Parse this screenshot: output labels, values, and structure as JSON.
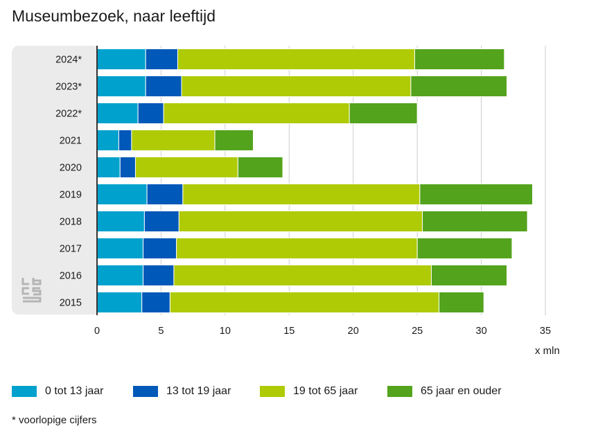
{
  "title": "Museumbezoek, naar leeftijd",
  "unit_label": "x mln",
  "footnote": "* voorlopige cijfers",
  "chart_data": {
    "type": "bar",
    "orientation": "horizontal",
    "stacked": true,
    "title": "Museumbezoek, naar leeftijd",
    "xlabel": "x mln",
    "ylabel": "",
    "xlim": [
      0,
      35
    ],
    "xticks": [
      0,
      5,
      10,
      15,
      20,
      25,
      30,
      35
    ],
    "grid": true,
    "legend_position": "bottom",
    "categories": [
      "2024*",
      "2023*",
      "2022*",
      "2021",
      "2020",
      "2019",
      "2018",
      "2017",
      "2016",
      "2015"
    ],
    "series": [
      {
        "name": "0 tot 13 jaar",
        "color": "#00a1cd",
        "values": [
          3.8,
          3.8,
          3.2,
          1.7,
          1.8,
          3.9,
          3.7,
          3.6,
          3.6,
          3.5
        ]
      },
      {
        "name": "13 tot 19 jaar",
        "color": "#0058b8",
        "values": [
          2.5,
          2.8,
          2.0,
          1.0,
          1.2,
          2.8,
          2.7,
          2.6,
          2.4,
          2.2
        ]
      },
      {
        "name": "19 tot 65 jaar",
        "color": "#afcb05",
        "values": [
          18.5,
          17.9,
          14.5,
          6.5,
          8.0,
          18.5,
          19.0,
          18.8,
          20.1,
          21.0
        ]
      },
      {
        "name": "65 jaar en ouder",
        "color": "#53a31d",
        "values": [
          7.0,
          7.5,
          5.3,
          3.0,
          3.5,
          8.8,
          8.2,
          7.4,
          5.9,
          3.5
        ]
      }
    ]
  }
}
